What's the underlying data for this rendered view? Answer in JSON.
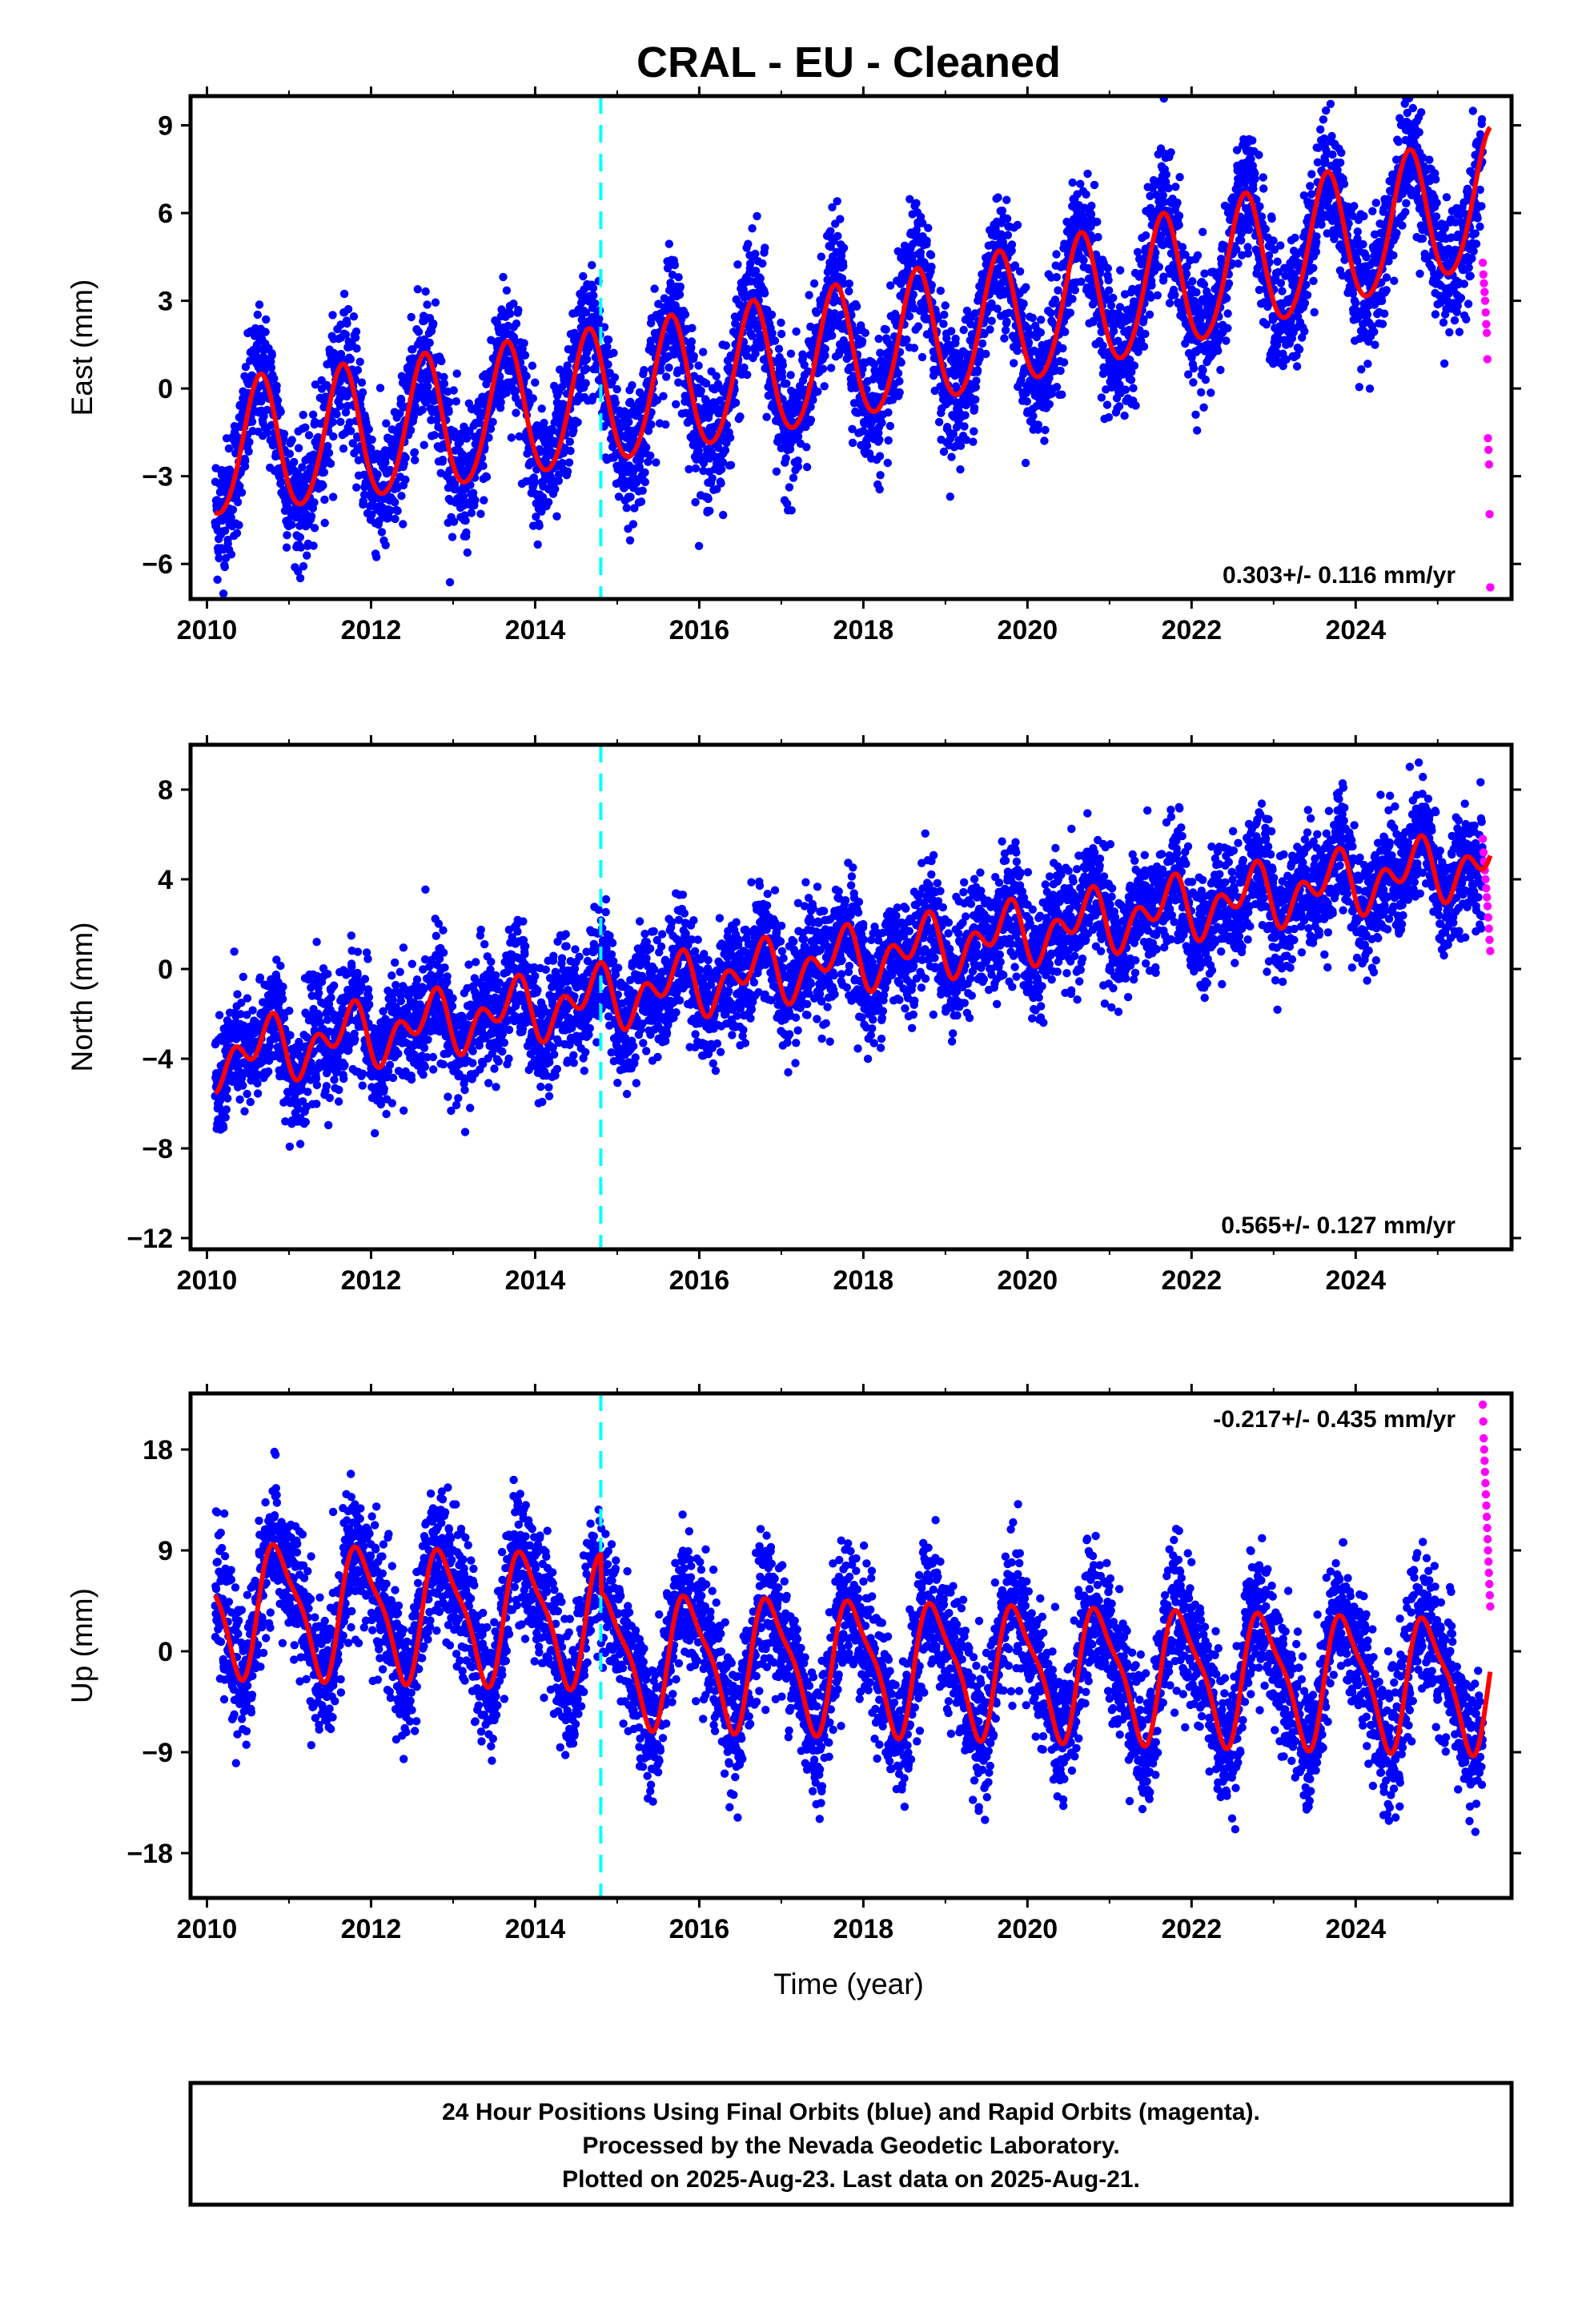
{
  "title": "CRAL  - EU - Cleaned",
  "colors": {
    "final_orbits": "#0000ff",
    "rapid_orbits": "#ff00ff",
    "model_fit": "#ff0000",
    "event_line": "#00ffff",
    "frame": "#000000"
  },
  "chart_data": [
    {
      "type": "scatter",
      "ylabel": "East (mm)",
      "xlabel": "",
      "xlim": [
        2009.8,
        2025.9
      ],
      "ylim": [
        -7.2,
        10.0
      ],
      "xticks": [
        2010,
        2012,
        2014,
        2016,
        2018,
        2020,
        2022,
        2024
      ],
      "yticks": [
        -6,
        -3,
        0,
        3,
        6,
        9
      ],
      "ytick_labels": [
        "−6",
        "−3",
        "0",
        "3",
        "6",
        "9"
      ],
      "rate_text": "0.303+/- 0.116 mm/yr",
      "rate_position": "bottom-right",
      "event_line_x": 2014.8,
      "model": {
        "intercept": -2.2,
        "rate": 0.303,
        "ref_year": 2010.0,
        "curvature": 0.016,
        "annual_amp": 2.3,
        "annual_phase_year": 0.4,
        "semiannual_amp": 0.2,
        "semiannual_phase_year": 0.05
      },
      "scatter_sd": 1.1,
      "final_range": [
        2010.1,
        2025.55
      ],
      "rapid": {
        "x_range": [
          2025.55,
          2025.64
        ],
        "y_values": [
          4.3,
          3.9,
          3.6,
          3.3,
          3.0,
          2.6,
          2.2,
          1.9,
          1.0,
          -1.7,
          -2.1,
          -2.6,
          -4.3,
          -6.8
        ]
      },
      "grid": false
    },
    {
      "type": "scatter",
      "ylabel": "North (mm)",
      "xlabel": "",
      "xlim": [
        2009.8,
        2025.9
      ],
      "ylim": [
        -12.5,
        10.0
      ],
      "xticks": [
        2010,
        2012,
        2014,
        2016,
        2018,
        2020,
        2022,
        2024
      ],
      "yticks": [
        -12,
        -8,
        -4,
        0,
        4,
        8
      ],
      "ytick_labels": [
        "−12",
        "−8",
        "−4",
        "0",
        "4",
        "8"
      ],
      "rate_text": "0.565+/- 0.127 mm/yr",
      "rate_position": "bottom-right",
      "event_line_x": 2014.8,
      "model": {
        "intercept": -4.0,
        "rate": 0.565,
        "ref_year": 2010.0,
        "curvature": 0.0,
        "annual_amp": 0.9,
        "annual_phase_year": 0.45,
        "semiannual_amp": 0.9,
        "semiannual_phase_year": 0.2
      },
      "scatter_sd": 1.3,
      "final_range": [
        2010.1,
        2025.55
      ],
      "rapid": {
        "x_range": [
          2025.55,
          2025.64
        ],
        "y_values": [
          5.8,
          5.2,
          4.8,
          4.4,
          4.0,
          3.6,
          3.2,
          2.8,
          2.3,
          1.8,
          1.3,
          0.8
        ]
      },
      "grid": false
    },
    {
      "type": "scatter",
      "ylabel": "Up (mm)",
      "xlabel": "Time (year)",
      "xlim": [
        2009.8,
        2025.9
      ],
      "ylim": [
        -22.0,
        23.0
      ],
      "xticks": [
        2010,
        2012,
        2014,
        2016,
        2018,
        2020,
        2022,
        2024
      ],
      "yticks": [
        -18,
        -9,
        0,
        9,
        18
      ],
      "ytick_labels": [
        "−18",
        "−9",
        "0",
        "9",
        "18"
      ],
      "rate_text": "-0.217+/- 0.435 mm/yr",
      "rate_position": "top-right",
      "event_line_x": 2014.8,
      "model": {
        "intercept": 4.0,
        "rate": -0.217,
        "ref_year": 2010.0,
        "curvature": 0.0,
        "annual_amp": 5.5,
        "annual_phase_year": 0.63,
        "semiannual_amp": 1.5,
        "semiannual_phase_year": 0.1
      },
      "step": {
        "year": 2014.8,
        "offset": -3.5
      },
      "scatter_sd": 3.0,
      "final_range": [
        2010.1,
        2025.55
      ],
      "rapid": {
        "x_range": [
          2025.55,
          2025.64
        ],
        "y_values": [
          22.0,
          20.5,
          19.0,
          18.0,
          17.0,
          16.0,
          15.0,
          14.0,
          13.0,
          12.0,
          11.0,
          10.0,
          9.0,
          8.0,
          7.0,
          6.0,
          5.0,
          4.0
        ]
      },
      "grid": false
    }
  ],
  "footer": {
    "line1": "24 Hour Positions Using Final Orbits (blue) and Rapid Orbits (magenta).",
    "line2": "Processed by the Nevada Geodetic Laboratory.",
    "line3": "Plotted on 2025-Aug-23. Last data on 2025-Aug-21."
  }
}
